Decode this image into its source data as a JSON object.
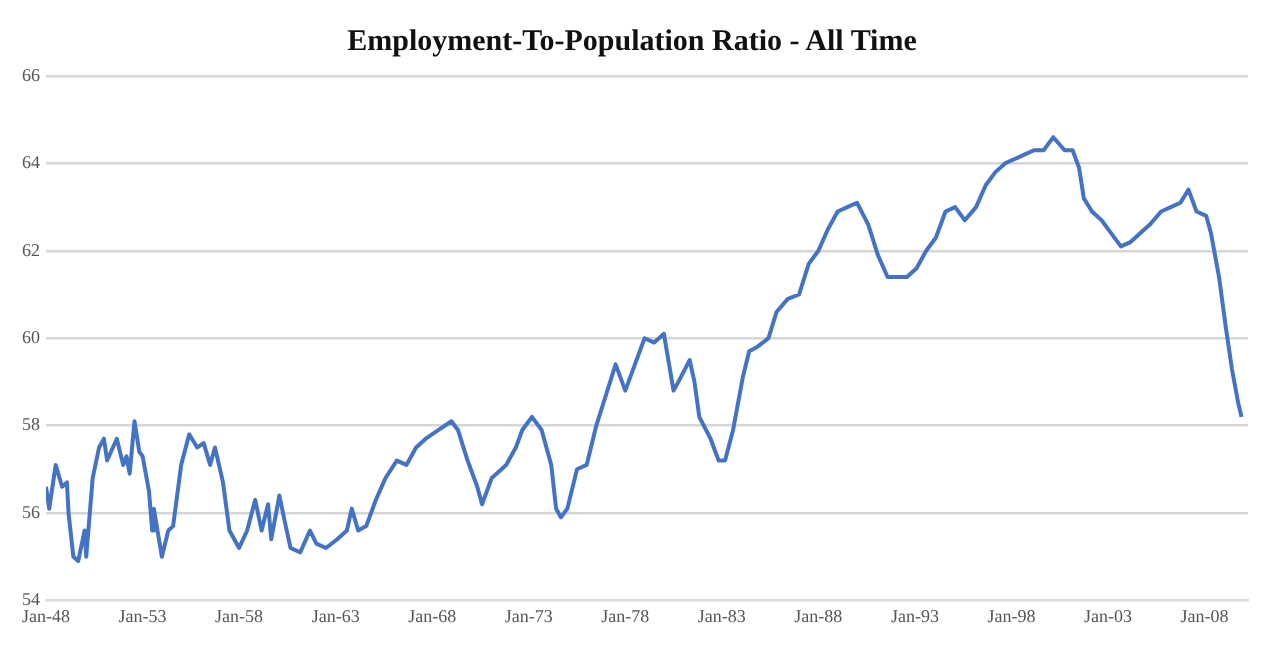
{
  "chart_data": {
    "type": "line",
    "title": "Employment-To-Population Ratio - All Time",
    "x": [
      "1948-01",
      "1948-03",
      "1948-07",
      "1948-11",
      "1949-02",
      "1949-03",
      "1949-06",
      "1949-09",
      "1950-01",
      "1950-02",
      "1950-06",
      "1950-10",
      "1951-01",
      "1951-03",
      "1951-09",
      "1952-01",
      "1952-03",
      "1952-05",
      "1952-08",
      "1952-11",
      "1953-01",
      "1953-05",
      "1953-07",
      "1953-08",
      "1954-01",
      "1954-05",
      "1954-08",
      "1955-01",
      "1955-06",
      "1955-11",
      "1956-03",
      "1956-07",
      "1956-10",
      "1957-03",
      "1957-07",
      "1958-01",
      "1958-06",
      "1958-11",
      "1959-03",
      "1959-07",
      "1959-09",
      "1960-02",
      "1960-06",
      "1960-09",
      "1961-03",
      "1961-09",
      "1962-01",
      "1962-07",
      "1963-02",
      "1963-08",
      "1963-11",
      "1964-03",
      "1964-08",
      "1965-02",
      "1965-08",
      "1966-03",
      "1966-09",
      "1967-03",
      "1967-09",
      "1968-05",
      "1969-01",
      "1969-05",
      "1969-11",
      "1970-05",
      "1970-08",
      "1971-02",
      "1971-11",
      "1972-05",
      "1972-09",
      "1973-03",
      "1973-09",
      "1974-03",
      "1974-06",
      "1974-09",
      "1975-01",
      "1975-07",
      "1976-01",
      "1976-07",
      "1977-01",
      "1977-07",
      "1978-01",
      "1978-07",
      "1979-01",
      "1979-07",
      "1980-01",
      "1980-07",
      "1980-10",
      "1981-05",
      "1981-08",
      "1981-11",
      "1982-06",
      "1982-11",
      "1983-03",
      "1983-08",
      "1984-02",
      "1984-06",
      "1984-11",
      "1985-06",
      "1985-11",
      "1986-06",
      "1987-01",
      "1987-07",
      "1988-01",
      "1988-07",
      "1989-01",
      "1989-07",
      "1990-01",
      "1990-08",
      "1991-02",
      "1991-08",
      "1992-02",
      "1992-08",
      "1993-02",
      "1993-08",
      "1994-02",
      "1994-08",
      "1995-02",
      "1995-08",
      "1996-03",
      "1996-09",
      "1997-03",
      "1997-09",
      "1998-03",
      "1998-09",
      "1999-03",
      "1999-09",
      "2000-03",
      "2000-10",
      "2001-03",
      "2001-07",
      "2001-10",
      "2002-03",
      "2002-09",
      "2003-03",
      "2003-09",
      "2004-03",
      "2004-09",
      "2005-03",
      "2005-10",
      "2006-04",
      "2006-10",
      "2007-03",
      "2007-08",
      "2008-02",
      "2008-05",
      "2008-10",
      "2009-02",
      "2009-06",
      "2009-10",
      "2009-12"
    ],
    "values": [
      56.6,
      56.1,
      57.1,
      56.6,
      56.7,
      56.0,
      55.0,
      54.9,
      55.6,
      55.0,
      56.8,
      57.5,
      57.7,
      57.2,
      57.7,
      57.1,
      57.3,
      56.9,
      58.1,
      57.4,
      57.3,
      56.5,
      55.6,
      56.1,
      55.0,
      55.6,
      55.7,
      57.1,
      57.8,
      57.5,
      57.6,
      57.1,
      57.5,
      56.7,
      55.6,
      55.2,
      55.6,
      56.3,
      55.6,
      56.2,
      55.4,
      56.4,
      55.7,
      55.2,
      55.1,
      55.6,
      55.3,
      55.2,
      55.4,
      55.6,
      56.1,
      55.6,
      55.7,
      56.3,
      56.8,
      57.2,
      57.1,
      57.5,
      57.7,
      57.9,
      58.1,
      57.9,
      57.2,
      56.6,
      56.2,
      56.8,
      57.1,
      57.5,
      57.9,
      58.2,
      57.9,
      57.1,
      56.1,
      55.9,
      56.1,
      57.0,
      57.1,
      58.0,
      58.7,
      59.4,
      58.8,
      59.4,
      60.0,
      59.9,
      60.1,
      58.8,
      59.0,
      59.5,
      59.0,
      58.2,
      57.7,
      57.2,
      57.2,
      57.9,
      59.1,
      59.7,
      59.8,
      60.0,
      60.6,
      60.9,
      61.0,
      61.7,
      62.0,
      62.5,
      62.9,
      63.0,
      63.1,
      62.6,
      61.9,
      61.4,
      61.4,
      61.4,
      61.6,
      62.0,
      62.3,
      62.9,
      63.0,
      62.7,
      63.0,
      63.5,
      63.8,
      64.0,
      64.1,
      64.2,
      64.3,
      64.3,
      64.6,
      64.3,
      64.3,
      63.9,
      63.2,
      62.9,
      62.7,
      62.4,
      62.1,
      62.2,
      62.4,
      62.6,
      62.9,
      63.0,
      63.1,
      63.4,
      62.9,
      62.8,
      62.4,
      61.4,
      60.3,
      59.3,
      58.5,
      58.2
    ],
    "color": "#4472c4",
    "xlim": [
      "1948-01",
      "2010-04"
    ],
    "xticks": [
      {
        "value": "1948-01",
        "label": "Jan-48"
      },
      {
        "value": "1953-01",
        "label": "Jan-53"
      },
      {
        "value": "1958-01",
        "label": "Jan-58"
      },
      {
        "value": "1963-01",
        "label": "Jan-63"
      },
      {
        "value": "1968-01",
        "label": "Jan-68"
      },
      {
        "value": "1973-01",
        "label": "Jan-73"
      },
      {
        "value": "1978-01",
        "label": "Jan-78"
      },
      {
        "value": "1983-01",
        "label": "Jan-83"
      },
      {
        "value": "1988-01",
        "label": "Jan-88"
      },
      {
        "value": "1993-01",
        "label": "Jan-93"
      },
      {
        "value": "1998-01",
        "label": "Jan-98"
      },
      {
        "value": "2003-01",
        "label": "Jan-03"
      },
      {
        "value": "2008-01",
        "label": "Jan-08"
      }
    ],
    "ylim": [
      54,
      66
    ],
    "yticks": [
      54,
      56,
      58,
      60,
      62,
      64,
      66
    ],
    "grid": "y",
    "legend": false,
    "marker": "none",
    "line_style": "solid"
  }
}
